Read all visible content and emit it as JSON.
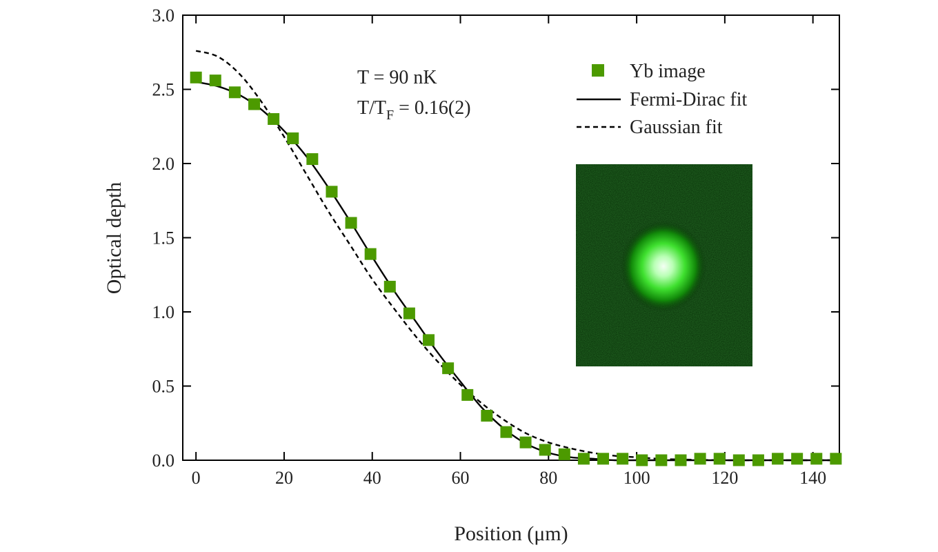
{
  "chart_data": {
    "type": "scatter",
    "xlabel": "Position (μm)",
    "ylabel": "Optical depth",
    "xlim": [
      -3,
      146
    ],
    "ylim": [
      0,
      3.0
    ],
    "x_ticks": [
      0,
      20,
      40,
      60,
      80,
      100,
      120,
      140
    ],
    "y_ticks": [
      0.0,
      0.5,
      1.0,
      1.5,
      2.0,
      2.5,
      3.0
    ],
    "x_tick_labels": [
      "0",
      "20",
      "40",
      "60",
      "80",
      "100",
      "120",
      "140"
    ],
    "y_tick_labels": [
      "0.0",
      "0.5",
      "1.0",
      "1.5",
      "2.0",
      "2.5",
      "3.0"
    ],
    "grid": false,
    "legend_position": "top-right",
    "annotations": {
      "temperature": "T = 90 nK",
      "ratio_prefix": "T/T",
      "ratio_sub": "F",
      "ratio_suffix": " = 0.16(2)"
    },
    "inset": "Yb absorption image (green cloud)",
    "series": [
      {
        "name": "Yb image",
        "style": "markers",
        "color": "#4c9a00",
        "x": [
          0,
          4.4,
          8.8,
          13.2,
          17.6,
          22,
          26.4,
          30.8,
          35.2,
          39.6,
          44,
          48.4,
          52.8,
          57.2,
          61.6,
          66,
          70.4,
          74.8,
          79.2,
          83.6,
          88,
          92.4,
          96.8,
          101.2,
          105.6,
          110,
          114.4,
          118.8,
          123.2,
          127.6,
          132,
          136.4,
          140.8,
          145.2
        ],
        "y": [
          2.58,
          2.56,
          2.48,
          2.4,
          2.3,
          2.17,
          2.03,
          1.81,
          1.6,
          1.39,
          1.17,
          0.99,
          0.81,
          0.62,
          0.44,
          0.3,
          0.19,
          0.12,
          0.07,
          0.04,
          0.01,
          0.01,
          0.01,
          0.0,
          0.0,
          0.0,
          0.01,
          0.01,
          0.0,
          0.0,
          0.01,
          0.01,
          0.01,
          0.01
        ]
      },
      {
        "name": "Fermi-Dirac fit",
        "style": "solid",
        "color": "#000000",
        "x": [
          0,
          5,
          10,
          15,
          20,
          25,
          30,
          35,
          40,
          45,
          50,
          55,
          60,
          65,
          70,
          75,
          80,
          85,
          90,
          95,
          100,
          110,
          120,
          130,
          140,
          145
        ],
        "y": [
          2.55,
          2.52,
          2.46,
          2.36,
          2.22,
          2.05,
          1.84,
          1.61,
          1.37,
          1.14,
          0.93,
          0.72,
          0.53,
          0.35,
          0.21,
          0.11,
          0.05,
          0.02,
          0.01,
          0.0,
          0.0,
          0.0,
          0.0,
          0.0,
          0.0,
          0.0
        ]
      },
      {
        "name": "Gaussian fit",
        "style": "dashed",
        "color": "#000000",
        "x": [
          0,
          5,
          10,
          15,
          20,
          25,
          30,
          35,
          40,
          45,
          50,
          55,
          60,
          65,
          70,
          75,
          80,
          85,
          90,
          95,
          100,
          105,
          110,
          120,
          130,
          140,
          145
        ],
        "y": [
          2.76,
          2.72,
          2.6,
          2.41,
          2.18,
          1.93,
          1.68,
          1.45,
          1.22,
          1.02,
          0.83,
          0.66,
          0.51,
          0.38,
          0.27,
          0.18,
          0.12,
          0.08,
          0.05,
          0.03,
          0.02,
          0.01,
          0.005,
          0.0,
          0.0,
          0.0,
          0.0
        ]
      }
    ]
  }
}
